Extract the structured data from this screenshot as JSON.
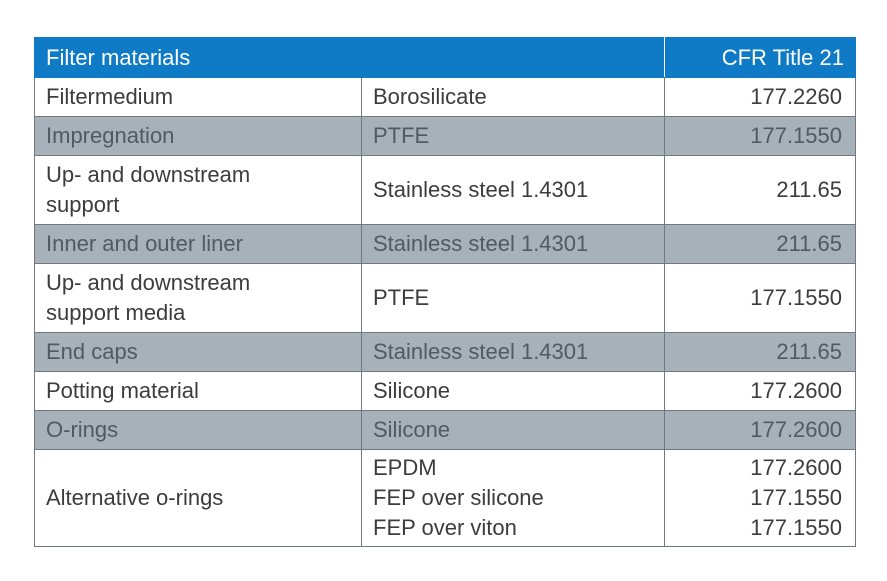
{
  "table": {
    "header": {
      "title": "Filter materials",
      "cfr": "CFR Title 21"
    },
    "rows": [
      {
        "component": "Filtermedium",
        "material": "Borosilicate",
        "cfr": "177.2260"
      },
      {
        "component": "Impregnation",
        "material": "PTFE",
        "cfr": "177.1550"
      },
      {
        "component": "Up- and downstream support",
        "component_lines": [
          "Up- and downstream",
          "support"
        ],
        "material": "Stainless steel 1.4301",
        "cfr": "211.65"
      },
      {
        "component": "Inner and outer liner",
        "material": "Stainless steel 1.4301",
        "cfr": "211.65"
      },
      {
        "component": "Up- and downstream support media",
        "component_lines": [
          "Up- and downstream",
          "support media"
        ],
        "material": "PTFE",
        "cfr": "177.1550"
      },
      {
        "component": "End caps",
        "material": "Stainless steel 1.4301",
        "cfr": "211.65"
      },
      {
        "component": "Potting material",
        "material": "Silicone",
        "cfr": "177.2600"
      },
      {
        "component": "O-rings",
        "material": "Silicone",
        "cfr": "177.2600"
      },
      {
        "component": "Alternative o-rings",
        "materials": [
          "EPDM",
          "FEP over silicone",
          "FEP over viton"
        ],
        "cfrs": [
          "177.2600",
          "177.1550",
          "177.1550"
        ]
      }
    ]
  },
  "colors": {
    "header_bg": "#0f7bc6",
    "shaded_row_bg": "#a7b1b9",
    "border": "#6f7780"
  }
}
